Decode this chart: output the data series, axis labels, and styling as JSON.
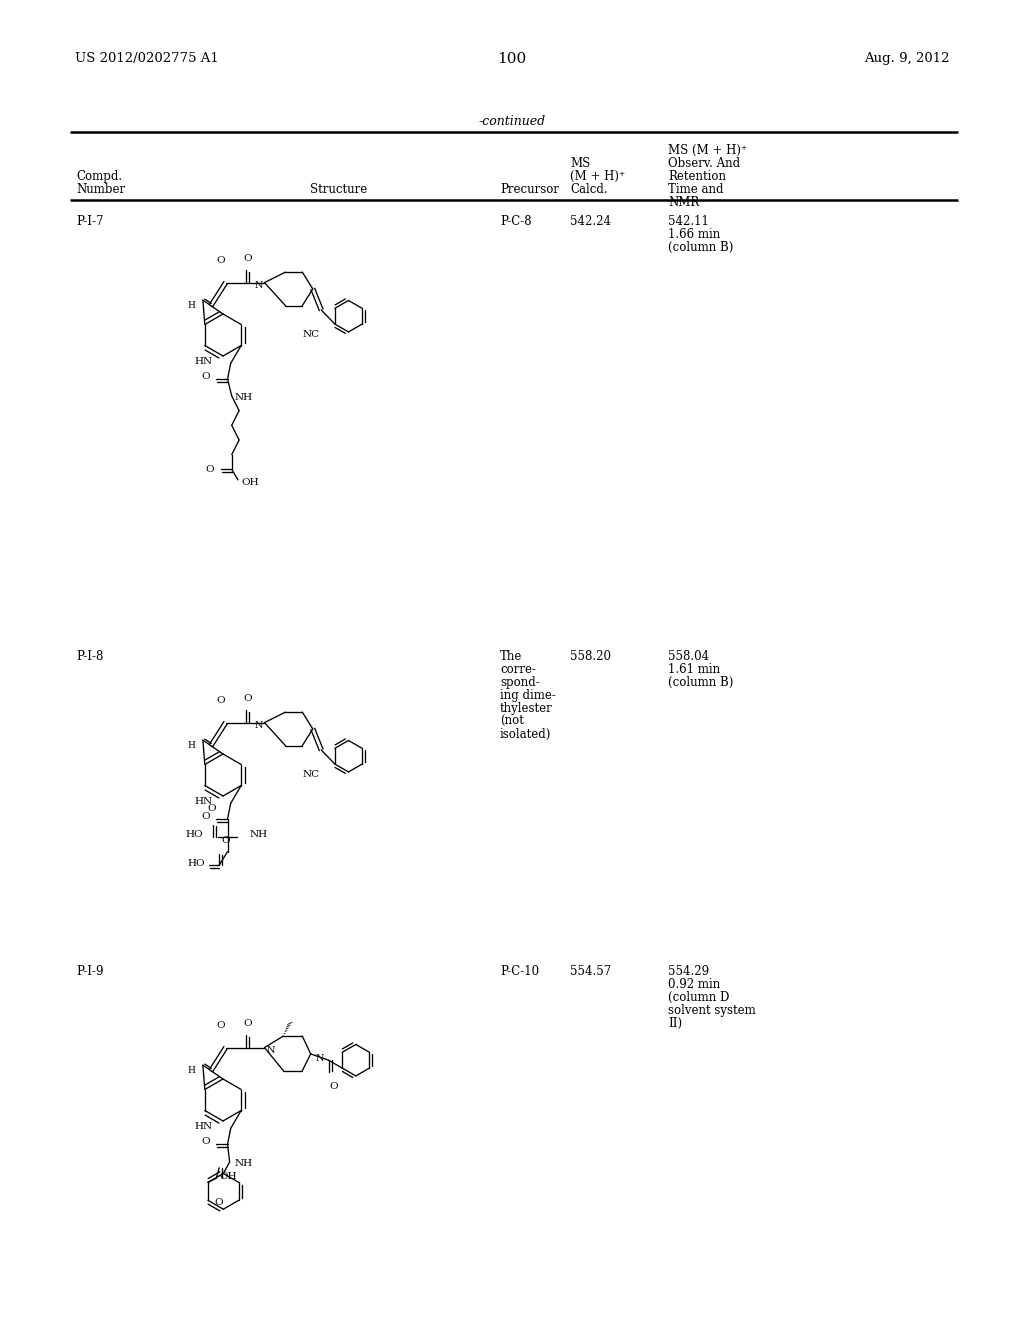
{
  "bg": "#ffffff",
  "header_left": "US 2012/0202775 A1",
  "header_right": "Aug. 9, 2012",
  "page_num": "100",
  "continued": "-continued",
  "col_headers": {
    "compd": [
      "Compd.",
      "Number"
    ],
    "structure": "Structure",
    "precursor": "Precursor",
    "ms_calcd": [
      "MS",
      "(M + H)⁺",
      "Calcd."
    ],
    "ms_obs": [
      "MS (M + H)⁺",
      "Observ. And",
      "Retention",
      "Time and",
      "NMR"
    ]
  },
  "rows": [
    {
      "id": "P-I-7",
      "precursor": "P-C-8",
      "ms_calcd": "542.24",
      "ms_obs": [
        "542.11",
        "1.66 min",
        "(column B)"
      ]
    },
    {
      "id": "P-I-8",
      "precursor": [
        "The",
        "corre-",
        "spond-",
        "ing dime-",
        "thylester",
        "(not",
        "isolated)"
      ],
      "ms_calcd": "558.20",
      "ms_obs": [
        "558.04",
        "1.61 min",
        "(column B)"
      ]
    },
    {
      "id": "P-I-9",
      "precursor": "P-C-10",
      "ms_calcd": "554.57",
      "ms_obs": [
        "554.29",
        "0.92 min",
        "(column D",
        "solvent system",
        "II)"
      ]
    }
  ]
}
